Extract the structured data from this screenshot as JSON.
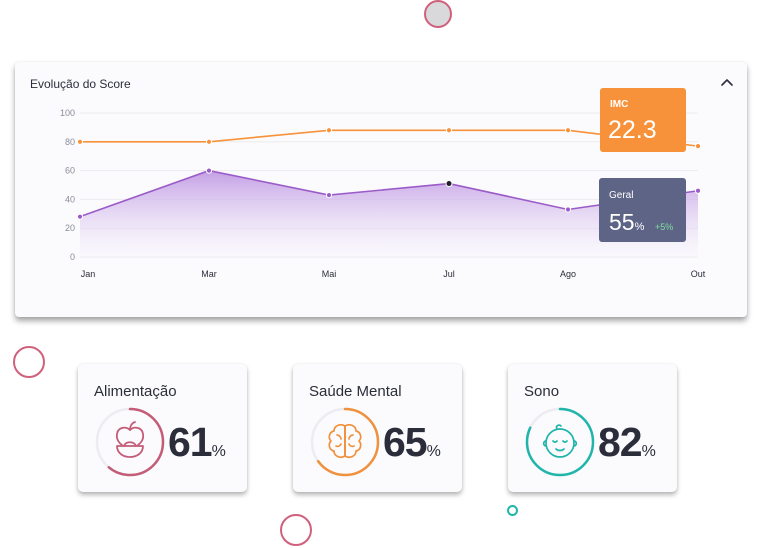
{
  "chart": {
    "title": "Evolução do Score",
    "collapse_icon": "chevron-up-icon"
  },
  "chart_data": {
    "type": "line",
    "x": [
      "Jan",
      "Mar",
      "Mai",
      "Jul",
      "Ago",
      "Out"
    ],
    "y_ticks": [
      "100",
      "80",
      "60",
      "40",
      "20",
      "0"
    ],
    "ylim": [
      0,
      100
    ],
    "grid": true,
    "series": [
      {
        "name": "IMC",
        "values": [
          80,
          80,
          88,
          88,
          88,
          77
        ],
        "color": "#f7923a"
      },
      {
        "name": "Geral",
        "values": [
          28,
          60,
          43,
          51,
          33,
          46
        ],
        "color": "#9b5cc9",
        "area": true
      }
    ],
    "highlight_index": 3
  },
  "tooltips": {
    "imc": {
      "label": "IMC",
      "value": "22.3"
    },
    "geral": {
      "label": "Geral",
      "value": "55",
      "unit": "%",
      "delta": "+5%"
    }
  },
  "metrics": [
    {
      "label": "Alimentação",
      "value": "61",
      "unit": "%",
      "percent": 61,
      "color": "#c45c78",
      "icon": "apple-bowl-icon"
    },
    {
      "label": "Saúde Mental",
      "value": "65",
      "unit": "%",
      "percent": 65,
      "color": "#f0913d",
      "icon": "brain-icon"
    },
    {
      "label": "Sono",
      "value": "82",
      "unit": "%",
      "percent": 82,
      "color": "#1fb5ab",
      "icon": "sleeping-face-icon"
    }
  ]
}
